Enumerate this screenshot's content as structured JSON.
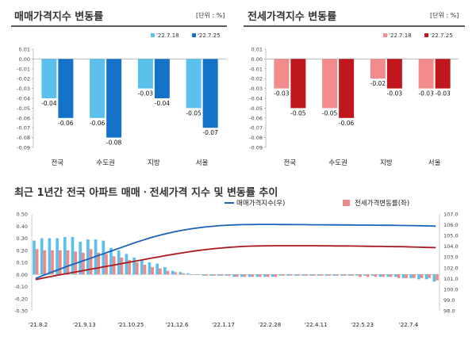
{
  "chart_data": [
    {
      "type": "bar",
      "title": "매매가격지수 변동률",
      "unit": "[단위 : %]",
      "categories": [
        "전국",
        "수도권",
        "지방",
        "서울"
      ],
      "series": [
        {
          "name": "'22.7.18",
          "values": [
            -0.04,
            -0.06,
            -0.03,
            -0.05
          ],
          "labels": [
            "-0.04",
            "-0.06",
            "-0.03",
            "-0.05"
          ],
          "color": "#5bc0eb"
        },
        {
          "name": "'22.7.25",
          "values": [
            -0.06,
            -0.08,
            -0.04,
            -0.07
          ],
          "labels": [
            "-0.06",
            "-0.08",
            "-0.04",
            "-0.07"
          ],
          "color": "#1473c9"
        }
      ],
      "ylim": [
        -0.09,
        0.01
      ],
      "yticks": [
        "0.01",
        "0.00",
        "-0.01",
        "-0.02",
        "-0.03",
        "-0.04",
        "-0.05",
        "-0.06",
        "-0.07",
        "-0.08",
        "-0.09"
      ],
      "legend": "top-right",
      "grid": false
    },
    {
      "type": "bar",
      "title": "전세가격지수 변동률",
      "unit": "[단위 : %]",
      "categories": [
        "전국",
        "수도권",
        "지방",
        "서울"
      ],
      "series": [
        {
          "name": "'22.7.18",
          "values": [
            -0.03,
            -0.05,
            -0.02,
            -0.03
          ],
          "labels": [
            "-0.03",
            "-0.05",
            "-0.02",
            "-0.03"
          ],
          "color": "#f28b8b"
        },
        {
          "name": "'22.7.25",
          "values": [
            -0.05,
            -0.06,
            -0.03,
            -0.03
          ],
          "labels": [
            "-0.05",
            "-0.06",
            "-0.03",
            "-0.03"
          ],
          "color": "#c0161d"
        }
      ],
      "ylim": [
        -0.09,
        0.01
      ],
      "yticks": [
        "0.01",
        "0.00",
        "-0.01",
        "-0.02",
        "-0.03",
        "-0.04",
        "-0.05",
        "-0.06",
        "-0.07",
        "-0.08",
        "-0.09"
      ],
      "legend": "top-right",
      "grid": false
    },
    {
      "type": "bar+line",
      "title": "최근 1년간 전국 아파트 매매ㆍ전세가격 지수 및 변동률 추이",
      "legend": "top",
      "grid": false,
      "xticks": [
        "'21.8.2",
        "'21.9.13",
        "'21.10.25",
        "'21.12.6",
        "'22.1.17",
        "'22.2.28",
        "'22.4.11",
        "'22.5.23",
        "'22.7.4"
      ],
      "y_left": {
        "ticks": [
          "0.50",
          "0.40",
          "0.30",
          "0.20",
          "0.10",
          "0.00",
          "-0.10",
          "-0.20",
          "-0.30"
        ],
        "range": [
          -0.3,
          0.5
        ]
      },
      "y_right": {
        "ticks": [
          "107.0",
          "106.0",
          "105.0",
          "104.0",
          "103.0",
          "102.0",
          "101.0",
          "100.0",
          "99.0",
          "98.0"
        ],
        "range": [
          98.0,
          107.0
        ]
      },
      "line_series": [
        {
          "name": "매매가격지수(우)",
          "color": "#1a63b8",
          "values": [
            101.0,
            101.28,
            101.56,
            101.83,
            102.1,
            102.35,
            102.6,
            102.85,
            103.1,
            103.35,
            103.6,
            103.85,
            104.1,
            104.35,
            104.58,
            104.8,
            105.0,
            105.18,
            105.34,
            105.48,
            105.6,
            105.7,
            105.79,
            105.86,
            105.92,
            105.96,
            105.99,
            106.01,
            106.02,
            106.03,
            106.03,
            106.03,
            106.02,
            106.02,
            106.01,
            106.01,
            106.0,
            106.0,
            105.99,
            105.99,
            105.98,
            105.98,
            105.97,
            105.97,
            105.96,
            105.95,
            105.95,
            105.94,
            105.93,
            105.92,
            105.91,
            105.89,
            105.87
          ]
        },
        {
          "name": "전세가격지수(우)",
          "color": "#a6191e",
          "values": [
            100.9,
            101.04,
            101.18,
            101.32,
            101.45,
            101.58,
            101.71,
            101.84,
            101.97,
            102.1,
            102.23,
            102.36,
            102.49,
            102.62,
            102.75,
            102.88,
            103.01,
            103.14,
            103.26,
            103.38,
            103.49,
            103.59,
            103.68,
            103.76,
            103.83,
            103.89,
            103.94,
            103.98,
            104.01,
            104.03,
            104.04,
            104.05,
            104.05,
            104.05,
            104.05,
            104.05,
            104.05,
            104.04,
            104.04,
            104.03,
            104.03,
            104.02,
            104.01,
            104.0,
            103.99,
            103.98,
            103.97,
            103.96,
            103.95,
            103.93,
            103.91,
            103.89,
            103.87
          ]
        }
      ],
      "bar_series": [
        {
          "name": "매매가격변동률(좌)",
          "color": "#5bc0eb",
          "values": [
            0.28,
            0.3,
            0.3,
            0.3,
            0.31,
            0.31,
            0.27,
            0.29,
            0.29,
            0.28,
            0.22,
            0.2,
            0.17,
            0.14,
            0.12,
            0.1,
            0.09,
            0.06,
            0.03,
            0.02,
            0.01,
            0.0,
            -0.01,
            -0.01,
            -0.01,
            -0.01,
            -0.02,
            -0.02,
            -0.02,
            -0.02,
            -0.02,
            -0.02,
            -0.01,
            -0.01,
            -0.01,
            -0.01,
            -0.01,
            -0.01,
            -0.01,
            -0.01,
            -0.01,
            -0.01,
            -0.01,
            -0.01,
            -0.01,
            -0.02,
            -0.02,
            -0.02,
            -0.03,
            -0.03,
            -0.04,
            -0.04,
            -0.06
          ]
        },
        {
          "name": "전세가격변동률(좌)",
          "color": "#f08a8a",
          "values": [
            0.21,
            0.2,
            0.2,
            0.2,
            0.2,
            0.19,
            0.18,
            0.21,
            0.18,
            0.17,
            0.15,
            0.14,
            0.12,
            0.1,
            0.08,
            0.06,
            0.05,
            0.03,
            0.02,
            0.01,
            0.0,
            0.0,
            -0.01,
            -0.01,
            -0.01,
            -0.01,
            -0.02,
            -0.02,
            -0.02,
            -0.02,
            -0.02,
            -0.02,
            -0.01,
            -0.01,
            -0.01,
            -0.01,
            -0.01,
            -0.01,
            -0.01,
            -0.01,
            -0.01,
            -0.01,
            -0.02,
            -0.02,
            -0.02,
            -0.02,
            -0.02,
            -0.03,
            -0.03,
            -0.03,
            -0.03,
            -0.03,
            -0.05
          ]
        }
      ]
    }
  ]
}
